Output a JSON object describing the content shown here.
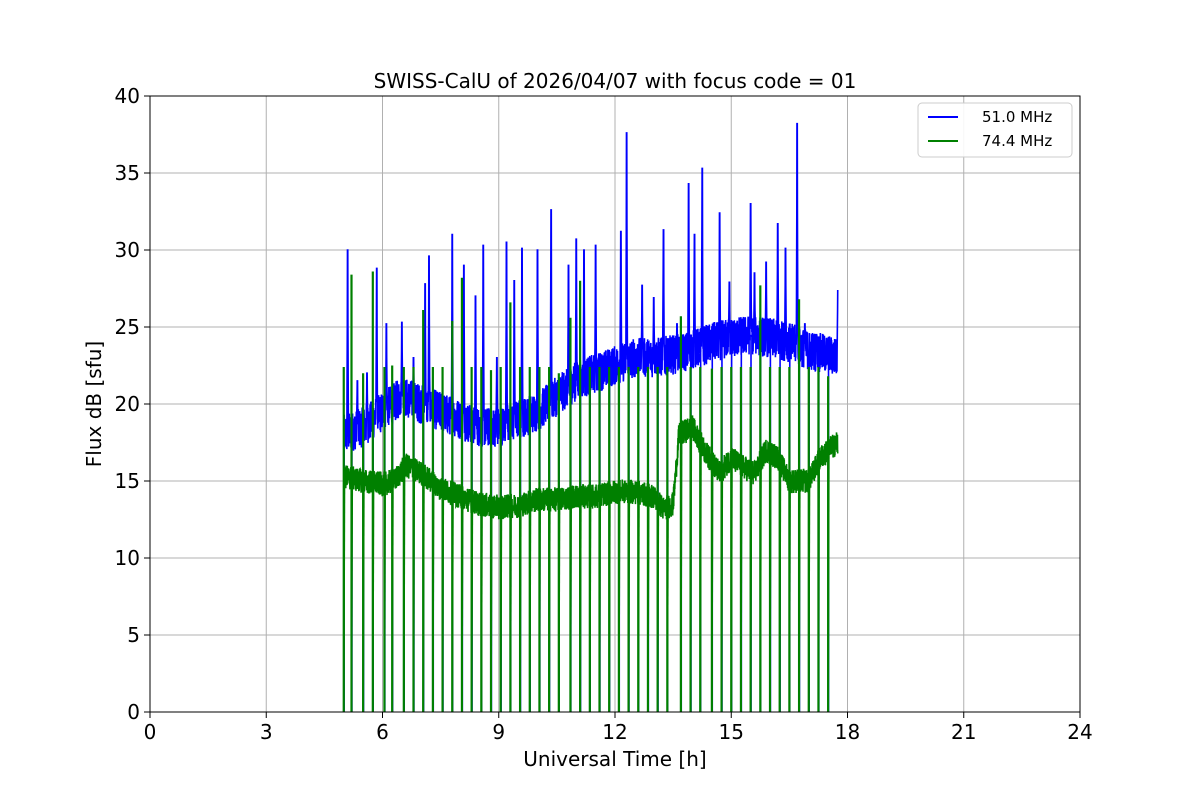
{
  "chart_data": {
    "type": "line",
    "title": "SWISS-CalU of 2026/04/07 with focus code = 01",
    "xlabel": "Universal Time [h]",
    "ylabel": "Flux dB [sfu]",
    "xlim": [
      0,
      24
    ],
    "ylim": [
      0,
      40
    ],
    "xticks": [
      0,
      3,
      6,
      9,
      12,
      15,
      18,
      21,
      24
    ],
    "yticks": [
      0,
      5,
      10,
      15,
      20,
      25,
      30,
      35,
      40
    ],
    "grid": true,
    "legend_position": "top-right",
    "data_start_h": 5.0,
    "data_end_h": 17.75,
    "series": [
      {
        "name": "51.0 MHz",
        "color": "#0000ff",
        "baseline": [
          [
            5.0,
            18.0
          ],
          [
            5.5,
            18.5
          ],
          [
            6.0,
            19.5
          ],
          [
            6.5,
            20.5
          ],
          [
            7.0,
            20.0
          ],
          [
            7.5,
            19.5
          ],
          [
            8.0,
            19.0
          ],
          [
            8.5,
            18.5
          ],
          [
            9.0,
            18.5
          ],
          [
            9.5,
            19.0
          ],
          [
            10.0,
            19.5
          ],
          [
            10.5,
            20.5
          ],
          [
            11.0,
            21.5
          ],
          [
            11.5,
            22.0
          ],
          [
            12.0,
            22.5
          ],
          [
            12.5,
            23.0
          ],
          [
            13.0,
            23.0
          ],
          [
            13.5,
            23.2
          ],
          [
            14.0,
            23.5
          ],
          [
            14.5,
            24.0
          ],
          [
            15.0,
            24.3
          ],
          [
            15.5,
            24.5
          ],
          [
            16.0,
            24.3
          ],
          [
            16.5,
            24.0
          ],
          [
            17.0,
            23.5
          ],
          [
            17.5,
            23.2
          ],
          [
            17.75,
            23.0
          ]
        ],
        "spikes": [
          [
            5.1,
            30.0
          ],
          [
            5.35,
            21.5
          ],
          [
            5.6,
            22.0
          ],
          [
            5.85,
            28.8
          ],
          [
            6.1,
            25.2
          ],
          [
            6.5,
            25.3
          ],
          [
            6.8,
            23.0
          ],
          [
            7.1,
            27.8
          ],
          [
            7.2,
            29.6
          ],
          [
            7.8,
            31.0
          ],
          [
            8.1,
            29.0
          ],
          [
            8.4,
            27.0
          ],
          [
            8.6,
            30.3
          ],
          [
            8.95,
            23.0
          ],
          [
            9.2,
            30.5
          ],
          [
            9.4,
            28.0
          ],
          [
            9.6,
            30.1
          ],
          [
            10.0,
            30.0
          ],
          [
            10.35,
            32.6
          ],
          [
            10.8,
            29.0
          ],
          [
            11.0,
            30.7
          ],
          [
            11.2,
            30.0
          ],
          [
            11.5,
            30.3
          ],
          [
            12.15,
            31.2
          ],
          [
            12.3,
            37.6
          ],
          [
            12.7,
            27.7
          ],
          [
            13.0,
            26.9
          ],
          [
            13.25,
            31.3
          ],
          [
            13.6,
            25.2
          ],
          [
            13.9,
            34.3
          ],
          [
            14.05,
            31.0
          ],
          [
            14.25,
            35.3
          ],
          [
            14.7,
            32.4
          ],
          [
            14.95,
            27.9
          ],
          [
            15.5,
            33.0
          ],
          [
            15.6,
            28.5
          ],
          [
            15.9,
            29.2
          ],
          [
            16.2,
            31.7
          ],
          [
            16.4,
            30.1
          ],
          [
            16.7,
            38.2
          ],
          [
            16.9,
            25.2
          ],
          [
            17.2,
            24.5
          ],
          [
            17.5,
            24.2
          ],
          [
            17.75,
            27.4
          ]
        ]
      },
      {
        "name": "74.4 MHz",
        "color": "#008000",
        "baseline": [
          [
            5.0,
            15.3
          ],
          [
            5.5,
            15.0
          ],
          [
            6.0,
            14.8
          ],
          [
            6.3,
            15.0
          ],
          [
            6.6,
            16.0
          ],
          [
            7.0,
            15.5
          ],
          [
            7.5,
            14.5
          ],
          [
            8.0,
            14.0
          ],
          [
            8.5,
            13.5
          ],
          [
            9.0,
            13.3
          ],
          [
            9.5,
            13.4
          ],
          [
            10.0,
            13.8
          ],
          [
            10.5,
            13.8
          ],
          [
            11.0,
            14.0
          ],
          [
            11.5,
            14.0
          ],
          [
            12.0,
            14.3
          ],
          [
            12.5,
            14.3
          ],
          [
            13.0,
            14.0
          ],
          [
            13.25,
            13.2
          ],
          [
            13.5,
            13.5
          ],
          [
            13.65,
            18.0
          ],
          [
            14.0,
            18.5
          ],
          [
            14.3,
            17.0
          ],
          [
            14.7,
            15.5
          ],
          [
            15.0,
            16.5
          ],
          [
            15.25,
            16.0
          ],
          [
            15.6,
            15.5
          ],
          [
            15.9,
            17.0
          ],
          [
            16.2,
            16.5
          ],
          [
            16.5,
            15.0
          ],
          [
            17.0,
            15.0
          ],
          [
            17.3,
            16.5
          ],
          [
            17.5,
            17.0
          ],
          [
            17.75,
            17.5
          ]
        ],
        "pulses": [
          5.0,
          5.2,
          5.5,
          5.75,
          6.05,
          6.25,
          6.55,
          6.8,
          7.05,
          7.3,
          7.55,
          7.8,
          8.05,
          8.3,
          8.55,
          8.8,
          9.05,
          9.3,
          9.55,
          9.8,
          10.05,
          10.3,
          10.55,
          10.85,
          11.1,
          11.35,
          11.6,
          11.85,
          12.1,
          12.35,
          12.6,
          12.85,
          13.1,
          13.35,
          13.7,
          13.95,
          14.2,
          14.5,
          14.75,
          15.0,
          15.25,
          15.5,
          15.75,
          16.0,
          16.25,
          16.5,
          16.75,
          17.0,
          17.25,
          17.5
        ],
        "pulse_heights": [
          22.4,
          28.4,
          22.0,
          28.6,
          22.4,
          22.5,
          22.4,
          22.4,
          26.1,
          22.4,
          22.4,
          25.4,
          28.2,
          22.4,
          22.4,
          22.2,
          22.4,
          26.6,
          22.4,
          22.4,
          22.4,
          22.4,
          22.0,
          25.6,
          28.0,
          22.4,
          22.4,
          22.4,
          22.4,
          22.4,
          22.4,
          22.4,
          22.4,
          22.4,
          25.7,
          22.4,
          22.4,
          22.3,
          22.4,
          22.4,
          22.4,
          22.4,
          27.7,
          22.4,
          22.4,
          22.4,
          26.8,
          22.4,
          22.4,
          21.8
        ]
      }
    ]
  }
}
